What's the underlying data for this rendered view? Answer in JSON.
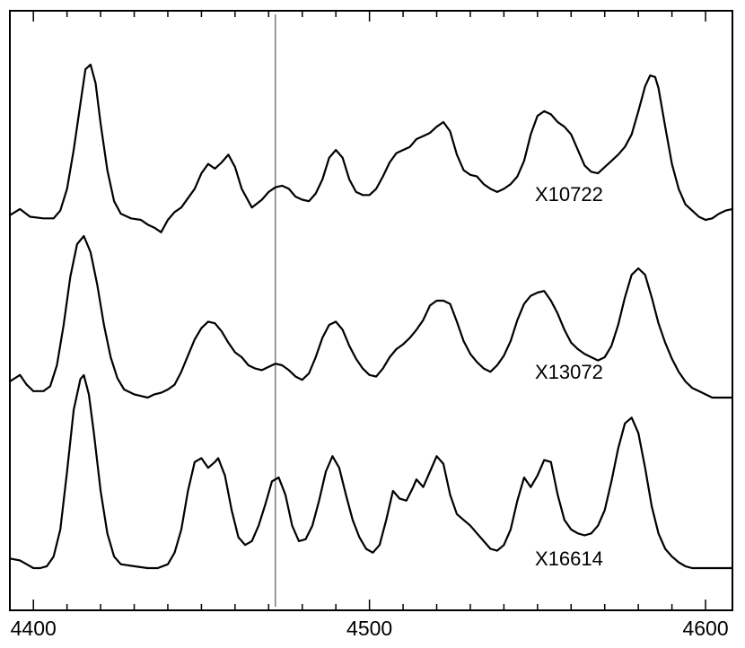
{
  "chart_data": {
    "type": "line",
    "title": "",
    "xlabel": "",
    "ylabel": "",
    "xlim": [
      4393,
      4608
    ],
    "x_ticks": [
      4400,
      4500,
      4600
    ],
    "x_tick_labels": [
      "4400",
      "4500",
      "4600"
    ],
    "reference_line_x": 4472,
    "grid": false,
    "series": [
      {
        "name": "X10722",
        "points": [
          [
            4393,
            0.03
          ],
          [
            4396,
            0.07
          ],
          [
            4399,
            0.02
          ],
          [
            4403,
            0.01
          ],
          [
            4406,
            0.01
          ],
          [
            4408,
            0.06
          ],
          [
            4410,
            0.2
          ],
          [
            4412,
            0.45
          ],
          [
            4414,
            0.75
          ],
          [
            4415.5,
            0.97
          ],
          [
            4417,
            1.0
          ],
          [
            4418.5,
            0.88
          ],
          [
            4420,
            0.62
          ],
          [
            4422,
            0.32
          ],
          [
            4424,
            0.12
          ],
          [
            4426,
            0.04
          ],
          [
            4429,
            0.01
          ],
          [
            4432,
            0.0
          ],
          [
            4434,
            -0.03
          ],
          [
            4436,
            -0.05
          ],
          [
            4438,
            -0.08
          ],
          [
            4440,
            0.0
          ],
          [
            4442,
            0.05
          ],
          [
            4444,
            0.08
          ],
          [
            4446,
            0.14
          ],
          [
            4448,
            0.2
          ],
          [
            4450,
            0.3
          ],
          [
            4452,
            0.36
          ],
          [
            4454,
            0.33
          ],
          [
            4456,
            0.37
          ],
          [
            4458,
            0.42
          ],
          [
            4460,
            0.34
          ],
          [
            4462,
            0.2
          ],
          [
            4465,
            0.08
          ],
          [
            4468,
            0.13
          ],
          [
            4470,
            0.18
          ],
          [
            4472,
            0.21
          ],
          [
            4474,
            0.22
          ],
          [
            4476,
            0.2
          ],
          [
            4478,
            0.15
          ],
          [
            4480,
            0.13
          ],
          [
            4482,
            0.12
          ],
          [
            4484,
            0.17
          ],
          [
            4486,
            0.26
          ],
          [
            4488,
            0.4
          ],
          [
            4490,
            0.45
          ],
          [
            4492,
            0.4
          ],
          [
            4494,
            0.26
          ],
          [
            4496,
            0.18
          ],
          [
            4498,
            0.16
          ],
          [
            4500,
            0.16
          ],
          [
            4502,
            0.2
          ],
          [
            4504,
            0.28
          ],
          [
            4506,
            0.37
          ],
          [
            4508,
            0.43
          ],
          [
            4510,
            0.45
          ],
          [
            4512,
            0.47
          ],
          [
            4514,
            0.52
          ],
          [
            4516,
            0.54
          ],
          [
            4518,
            0.56
          ],
          [
            4520,
            0.6
          ],
          [
            4522,
            0.63
          ],
          [
            4524,
            0.57
          ],
          [
            4526,
            0.42
          ],
          [
            4528,
            0.32
          ],
          [
            4530,
            0.29
          ],
          [
            4532,
            0.28
          ],
          [
            4534,
            0.23
          ],
          [
            4536,
            0.2
          ],
          [
            4538,
            0.18
          ],
          [
            4540,
            0.2
          ],
          [
            4542,
            0.23
          ],
          [
            4544,
            0.28
          ],
          [
            4546,
            0.38
          ],
          [
            4548,
            0.55
          ],
          [
            4550,
            0.67
          ],
          [
            4552,
            0.7
          ],
          [
            4554,
            0.68
          ],
          [
            4556,
            0.63
          ],
          [
            4558,
            0.6
          ],
          [
            4560,
            0.55
          ],
          [
            4562,
            0.45
          ],
          [
            4564,
            0.35
          ],
          [
            4566,
            0.31
          ],
          [
            4568,
            0.3
          ],
          [
            4570,
            0.34
          ],
          [
            4572,
            0.38
          ],
          [
            4574,
            0.42
          ],
          [
            4576,
            0.47
          ],
          [
            4578,
            0.55
          ],
          [
            4580,
            0.7
          ],
          [
            4582,
            0.86
          ],
          [
            4583.5,
            0.93
          ],
          [
            4585,
            0.92
          ],
          [
            4586,
            0.85
          ],
          [
            4588,
            0.6
          ],
          [
            4590,
            0.36
          ],
          [
            4592,
            0.2
          ],
          [
            4594,
            0.1
          ],
          [
            4596,
            0.06
          ],
          [
            4598,
            0.02
          ],
          [
            4600,
            0.0
          ],
          [
            4602,
            0.01
          ],
          [
            4604,
            0.04
          ],
          [
            4606,
            0.06
          ],
          [
            4608,
            0.07
          ]
        ]
      },
      {
        "name": "X13072",
        "points": [
          [
            4393,
            0.1
          ],
          [
            4396,
            0.14
          ],
          [
            4398,
            0.08
          ],
          [
            4400,
            0.04
          ],
          [
            4403,
            0.04
          ],
          [
            4405,
            0.07
          ],
          [
            4407,
            0.2
          ],
          [
            4409,
            0.45
          ],
          [
            4411,
            0.75
          ],
          [
            4413,
            0.95
          ],
          [
            4415,
            1.0
          ],
          [
            4417,
            0.9
          ],
          [
            4419,
            0.7
          ],
          [
            4421,
            0.45
          ],
          [
            4423,
            0.25
          ],
          [
            4425,
            0.12
          ],
          [
            4427,
            0.05
          ],
          [
            4430,
            0.02
          ],
          [
            4432,
            0.01
          ],
          [
            4434,
            0.0
          ],
          [
            4436,
            0.02
          ],
          [
            4438,
            0.03
          ],
          [
            4440,
            0.05
          ],
          [
            4442,
            0.08
          ],
          [
            4444,
            0.16
          ],
          [
            4446,
            0.26
          ],
          [
            4448,
            0.36
          ],
          [
            4450,
            0.43
          ],
          [
            4452,
            0.47
          ],
          [
            4454,
            0.46
          ],
          [
            4456,
            0.41
          ],
          [
            4458,
            0.34
          ],
          [
            4460,
            0.28
          ],
          [
            4462,
            0.25
          ],
          [
            4464,
            0.2
          ],
          [
            4466,
            0.18
          ],
          [
            4468,
            0.17
          ],
          [
            4470,
            0.19
          ],
          [
            4472,
            0.21
          ],
          [
            4474,
            0.2
          ],
          [
            4476,
            0.17
          ],
          [
            4478,
            0.13
          ],
          [
            4480,
            0.11
          ],
          [
            4482,
            0.15
          ],
          [
            4484,
            0.25
          ],
          [
            4486,
            0.37
          ],
          [
            4488,
            0.45
          ],
          [
            4490,
            0.47
          ],
          [
            4492,
            0.42
          ],
          [
            4494,
            0.32
          ],
          [
            4496,
            0.24
          ],
          [
            4498,
            0.18
          ],
          [
            4500,
            0.14
          ],
          [
            4502,
            0.13
          ],
          [
            4504,
            0.18
          ],
          [
            4506,
            0.25
          ],
          [
            4508,
            0.3
          ],
          [
            4510,
            0.33
          ],
          [
            4512,
            0.37
          ],
          [
            4514,
            0.42
          ],
          [
            4516,
            0.48
          ],
          [
            4518,
            0.57
          ],
          [
            4520,
            0.6
          ],
          [
            4522,
            0.6
          ],
          [
            4524,
            0.58
          ],
          [
            4526,
            0.47
          ],
          [
            4528,
            0.35
          ],
          [
            4530,
            0.27
          ],
          [
            4532,
            0.22
          ],
          [
            4534,
            0.18
          ],
          [
            4536,
            0.16
          ],
          [
            4538,
            0.2
          ],
          [
            4540,
            0.26
          ],
          [
            4542,
            0.35
          ],
          [
            4544,
            0.48
          ],
          [
            4546,
            0.58
          ],
          [
            4548,
            0.63
          ],
          [
            4550,
            0.65
          ],
          [
            4552,
            0.66
          ],
          [
            4554,
            0.6
          ],
          [
            4556,
            0.52
          ],
          [
            4558,
            0.42
          ],
          [
            4560,
            0.34
          ],
          [
            4562,
            0.3
          ],
          [
            4564,
            0.27
          ],
          [
            4566,
            0.25
          ],
          [
            4568,
            0.23
          ],
          [
            4570,
            0.25
          ],
          [
            4572,
            0.32
          ],
          [
            4574,
            0.45
          ],
          [
            4576,
            0.62
          ],
          [
            4578,
            0.76
          ],
          [
            4580,
            0.8
          ],
          [
            4582,
            0.76
          ],
          [
            4584,
            0.62
          ],
          [
            4586,
            0.46
          ],
          [
            4588,
            0.34
          ],
          [
            4590,
            0.24
          ],
          [
            4592,
            0.16
          ],
          [
            4594,
            0.1
          ],
          [
            4596,
            0.06
          ],
          [
            4598,
            0.04
          ],
          [
            4600,
            0.02
          ],
          [
            4602,
            0.0
          ],
          [
            4604,
            0.0
          ],
          [
            4606,
            0.0
          ],
          [
            4608,
            0.0
          ]
        ]
      },
      {
        "name": "X16614",
        "points": [
          [
            4393,
            0.05
          ],
          [
            4396,
            0.04
          ],
          [
            4398,
            0.02
          ],
          [
            4400,
            0.0
          ],
          [
            4402,
            0.0
          ],
          [
            4404,
            0.01
          ],
          [
            4406,
            0.06
          ],
          [
            4408,
            0.2
          ],
          [
            4410,
            0.5
          ],
          [
            4412,
            0.82
          ],
          [
            4414,
            0.98
          ],
          [
            4415,
            1.0
          ],
          [
            4416.5,
            0.9
          ],
          [
            4418,
            0.7
          ],
          [
            4420,
            0.4
          ],
          [
            4422,
            0.18
          ],
          [
            4424,
            0.06
          ],
          [
            4426,
            0.02
          ],
          [
            4430,
            0.01
          ],
          [
            4434,
            0.0
          ],
          [
            4437,
            0.0
          ],
          [
            4440,
            0.02
          ],
          [
            4442,
            0.08
          ],
          [
            4444,
            0.2
          ],
          [
            4446,
            0.4
          ],
          [
            4448,
            0.55
          ],
          [
            4450,
            0.57
          ],
          [
            4452,
            0.52
          ],
          [
            4454,
            0.55
          ],
          [
            4455,
            0.57
          ],
          [
            4457,
            0.48
          ],
          [
            4459,
            0.3
          ],
          [
            4461,
            0.16
          ],
          [
            4463,
            0.12
          ],
          [
            4465,
            0.14
          ],
          [
            4467,
            0.22
          ],
          [
            4469,
            0.33
          ],
          [
            4471,
            0.45
          ],
          [
            4473,
            0.47
          ],
          [
            4475,
            0.38
          ],
          [
            4477,
            0.22
          ],
          [
            4479,
            0.14
          ],
          [
            4481,
            0.15
          ],
          [
            4483,
            0.22
          ],
          [
            4485,
            0.35
          ],
          [
            4487,
            0.5
          ],
          [
            4489,
            0.58
          ],
          [
            4491,
            0.52
          ],
          [
            4493,
            0.38
          ],
          [
            4495,
            0.25
          ],
          [
            4497,
            0.16
          ],
          [
            4499,
            0.1
          ],
          [
            4501,
            0.08
          ],
          [
            4503,
            0.12
          ],
          [
            4505,
            0.25
          ],
          [
            4507,
            0.4
          ],
          [
            4509,
            0.36
          ],
          [
            4511,
            0.35
          ],
          [
            4513,
            0.42
          ],
          [
            4514,
            0.46
          ],
          [
            4516,
            0.42
          ],
          [
            4518,
            0.5
          ],
          [
            4520,
            0.58
          ],
          [
            4522,
            0.54
          ],
          [
            4524,
            0.38
          ],
          [
            4526,
            0.28
          ],
          [
            4528,
            0.25
          ],
          [
            4530,
            0.22
          ],
          [
            4532,
            0.18
          ],
          [
            4534,
            0.14
          ],
          [
            4536,
            0.1
          ],
          [
            4538,
            0.09
          ],
          [
            4540,
            0.12
          ],
          [
            4542,
            0.2
          ],
          [
            4544,
            0.35
          ],
          [
            4546,
            0.47
          ],
          [
            4548,
            0.42
          ],
          [
            4550,
            0.48
          ],
          [
            4552,
            0.56
          ],
          [
            4554,
            0.55
          ],
          [
            4556,
            0.38
          ],
          [
            4558,
            0.25
          ],
          [
            4560,
            0.2
          ],
          [
            4562,
            0.18
          ],
          [
            4564,
            0.17
          ],
          [
            4566,
            0.18
          ],
          [
            4568,
            0.22
          ],
          [
            4570,
            0.3
          ],
          [
            4572,
            0.45
          ],
          [
            4574,
            0.62
          ],
          [
            4576,
            0.75
          ],
          [
            4578,
            0.78
          ],
          [
            4580,
            0.7
          ],
          [
            4582,
            0.52
          ],
          [
            4584,
            0.32
          ],
          [
            4586,
            0.18
          ],
          [
            4588,
            0.1
          ],
          [
            4590,
            0.06
          ],
          [
            4592,
            0.03
          ],
          [
            4594,
            0.01
          ],
          [
            4596,
            0.0
          ],
          [
            4600,
            0.0
          ],
          [
            4604,
            0.0
          ],
          [
            4608,
            0.0
          ]
        ]
      }
    ]
  }
}
